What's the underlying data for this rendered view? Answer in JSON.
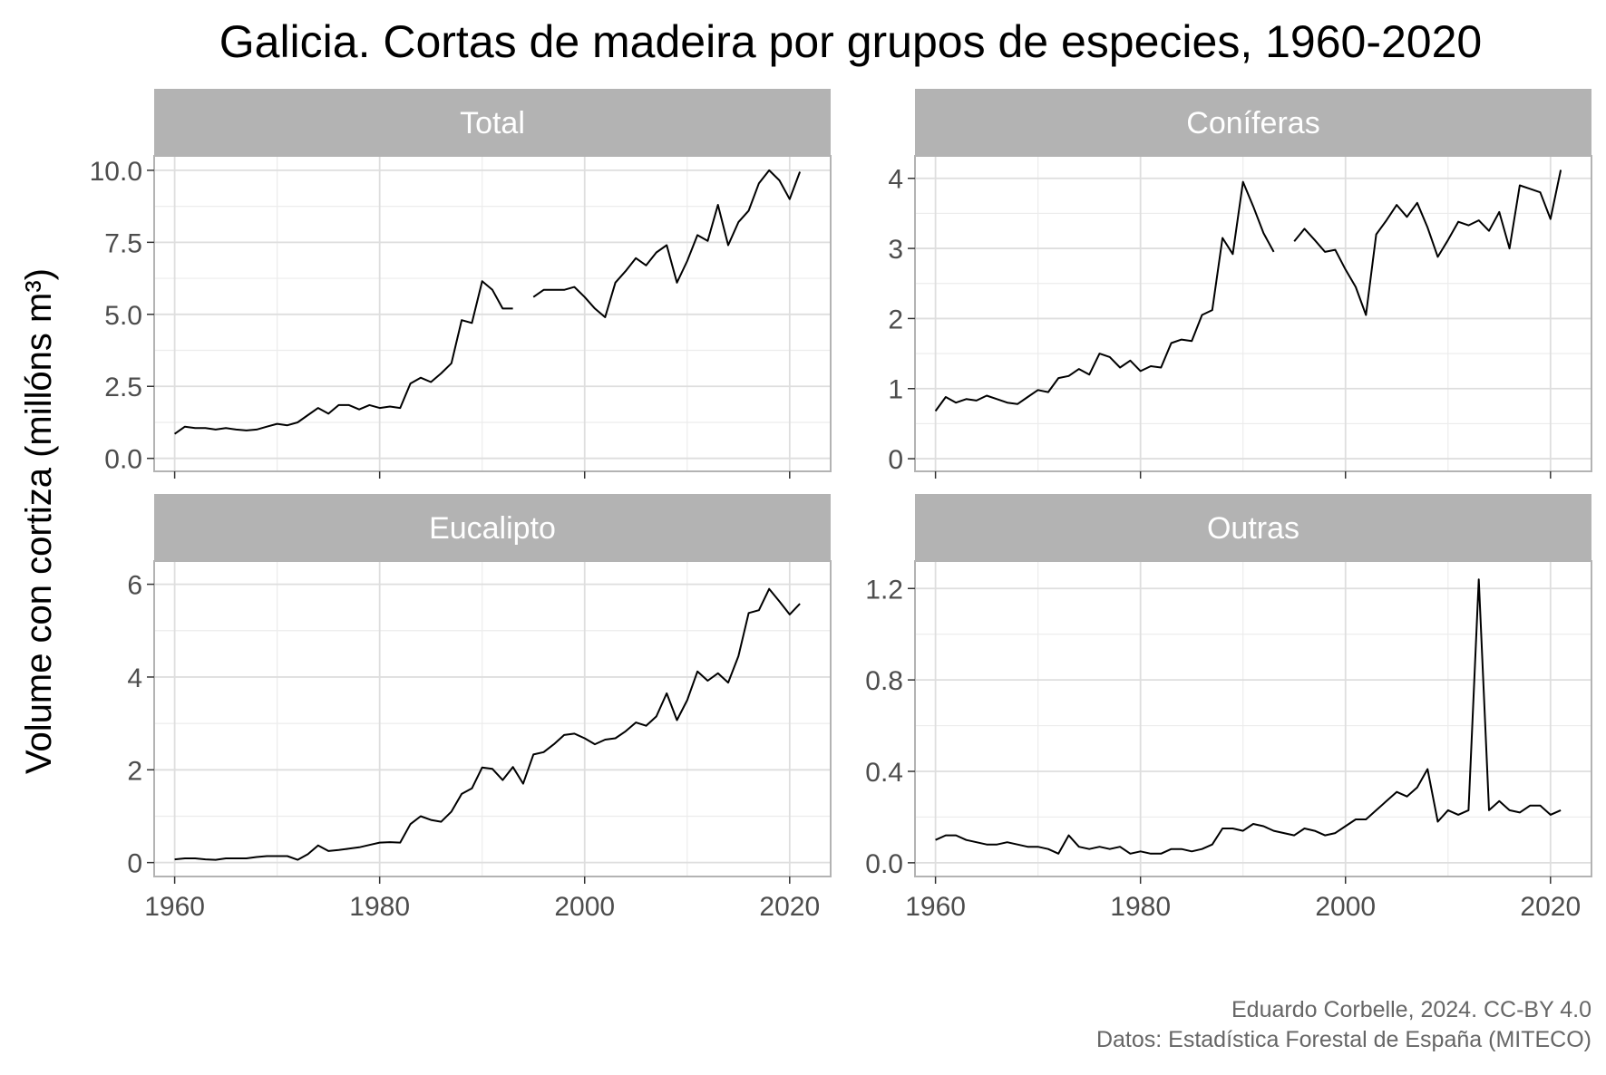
{
  "title": "Galicia. Cortas de madeira por grupos de especies, 1960-2020",
  "ylabel": "Volume con cortiza (millóns m³)",
  "caption": [
    "Eduardo Corbelle, 2024. CC-BY 4.0",
    "Datos: Estadística Forestal de España (MITECO)"
  ],
  "colors": {
    "strip": "#b3b3b3",
    "strip_text": "#ffffff",
    "grid": "#dedede",
    "line": "#000000",
    "axis_text": "#4d4d4d",
    "panel_border": "#b3b3b3"
  },
  "chart_data": [
    {
      "type": "line",
      "title": "Total",
      "xlim": [
        1958,
        2024
      ],
      "ylim": [
        -0.45,
        10.5
      ],
      "xticks": [
        1960,
        1980,
        2000,
        2020
      ],
      "xtick_labels": [
        "1960",
        "1980",
        "2000",
        "2020"
      ],
      "yticks": [
        0,
        2.5,
        5,
        7.5,
        10
      ],
      "ytick_labels": [
        "0.0",
        "2.5",
        "5.0",
        "7.5",
        "10.0"
      ],
      "grid": true,
      "x": [
        1960,
        1961,
        1962,
        1963,
        1964,
        1965,
        1966,
        1967,
        1968,
        1969,
        1970,
        1971,
        1972,
        1973,
        1974,
        1975,
        1976,
        1977,
        1978,
        1979,
        1980,
        1981,
        1982,
        1983,
        1984,
        1985,
        1986,
        1987,
        1988,
        1989,
        1990,
        1991,
        1992,
        1993,
        1994,
        1995,
        1996,
        1997,
        1998,
        1999,
        2000,
        2001,
        2002,
        2003,
        2004,
        2005,
        2006,
        2007,
        2008,
        2009,
        2010,
        2011,
        2012,
        2013,
        2014,
        2015,
        2016,
        2017,
        2018,
        2019,
        2020,
        2021
      ],
      "y": [
        0.85,
        1.1,
        1.05,
        1.05,
        1.0,
        1.05,
        1.0,
        0.97,
        1.0,
        1.1,
        1.2,
        1.15,
        1.25,
        1.5,
        1.75,
        1.55,
        1.85,
        1.85,
        1.7,
        1.85,
        1.75,
        1.8,
        1.75,
        2.6,
        2.8,
        2.65,
        2.95,
        3.3,
        4.8,
        4.7,
        6.15,
        5.85,
        5.2,
        5.2,
        null,
        5.6,
        5.85,
        5.85,
        5.85,
        5.95,
        5.6,
        5.2,
        4.9,
        6.1,
        6.5,
        6.95,
        6.7,
        7.15,
        7.4,
        6.1,
        6.85,
        7.75,
        7.55,
        8.8,
        7.4,
        8.2,
        8.6,
        9.55,
        10.0,
        9.65,
        9.0,
        9.95
      ]
    },
    {
      "type": "line",
      "title": "Coníferas",
      "xlim": [
        1958,
        2024
      ],
      "ylim": [
        -0.18,
        4.32
      ],
      "xticks": [
        1960,
        1980,
        2000,
        2020
      ],
      "xtick_labels": [
        "1960",
        "1980",
        "2000",
        "2020"
      ],
      "yticks": [
        0,
        1,
        2,
        3,
        4
      ],
      "ytick_labels": [
        "0",
        "1",
        "2",
        "3",
        "4"
      ],
      "grid": true,
      "x": [
        1960,
        1961,
        1962,
        1963,
        1964,
        1965,
        1966,
        1967,
        1968,
        1969,
        1970,
        1971,
        1972,
        1973,
        1974,
        1975,
        1976,
        1977,
        1978,
        1979,
        1980,
        1981,
        1982,
        1983,
        1984,
        1985,
        1986,
        1987,
        1988,
        1989,
        1990,
        1991,
        1992,
        1993,
        1994,
        1995,
        1996,
        1997,
        1998,
        1999,
        2000,
        2001,
        2002,
        2003,
        2004,
        2005,
        2006,
        2007,
        2008,
        2009,
        2010,
        2011,
        2012,
        2013,
        2014,
        2015,
        2016,
        2017,
        2018,
        2019,
        2020,
        2021
      ],
      "y": [
        0.68,
        0.88,
        0.8,
        0.85,
        0.83,
        0.9,
        0.85,
        0.8,
        0.78,
        0.88,
        0.98,
        0.95,
        1.15,
        1.18,
        1.28,
        1.2,
        1.5,
        1.45,
        1.3,
        1.4,
        1.25,
        1.32,
        1.3,
        1.65,
        1.7,
        1.68,
        2.05,
        2.12,
        3.15,
        2.92,
        3.95,
        3.6,
        3.22,
        2.95,
        null,
        3.1,
        3.28,
        3.12,
        2.95,
        2.98,
        2.7,
        2.45,
        2.05,
        3.2,
        3.4,
        3.62,
        3.45,
        3.65,
        3.3,
        2.88,
        3.12,
        3.38,
        3.33,
        3.4,
        3.25,
        3.52,
        3.0,
        3.9,
        3.85,
        3.8,
        3.42,
        4.12
      ]
    },
    {
      "type": "line",
      "title": "Eucalipto",
      "xlim": [
        1958,
        2024
      ],
      "ylim": [
        -0.3,
        6.5
      ],
      "xticks": [
        1960,
        1980,
        2000,
        2020
      ],
      "xtick_labels": [
        "1960",
        "1980",
        "2000",
        "2020"
      ],
      "yticks": [
        0,
        2,
        4,
        6
      ],
      "ytick_labels": [
        "0",
        "2",
        "4",
        "6"
      ],
      "grid": true,
      "x": [
        1960,
        1961,
        1962,
        1963,
        1964,
        1965,
        1966,
        1967,
        1968,
        1969,
        1970,
        1971,
        1972,
        1973,
        1974,
        1975,
        1976,
        1977,
        1978,
        1979,
        1980,
        1981,
        1982,
        1983,
        1984,
        1985,
        1986,
        1987,
        1988,
        1989,
        1990,
        1991,
        1992,
        1993,
        1994,
        1995,
        1996,
        1997,
        1998,
        1999,
        2000,
        2001,
        2002,
        2003,
        2004,
        2005,
        2006,
        2007,
        2008,
        2009,
        2010,
        2011,
        2012,
        2013,
        2014,
        2015,
        2016,
        2017,
        2018,
        2019,
        2020,
        2021
      ],
      "y": [
        0.07,
        0.09,
        0.09,
        0.07,
        0.06,
        0.09,
        0.09,
        0.09,
        0.12,
        0.14,
        0.14,
        0.14,
        0.06,
        0.18,
        0.37,
        0.25,
        0.27,
        0.3,
        0.33,
        0.38,
        0.43,
        0.44,
        0.43,
        0.83,
        1.0,
        0.92,
        0.88,
        1.1,
        1.48,
        1.6,
        2.05,
        2.02,
        1.78,
        2.06,
        1.7,
        2.33,
        2.38,
        2.55,
        2.75,
        2.78,
        2.68,
        2.55,
        2.65,
        2.68,
        2.83,
        3.02,
        2.95,
        3.15,
        3.65,
        3.07,
        3.5,
        4.12,
        3.92,
        4.08,
        3.88,
        4.45,
        5.38,
        5.44,
        5.9,
        5.63,
        5.35,
        5.58
      ]
    },
    {
      "type": "line",
      "title": "Outras",
      "xlim": [
        1958,
        2024
      ],
      "ylim": [
        -0.06,
        1.32
      ],
      "xticks": [
        1960,
        1980,
        2000,
        2020
      ],
      "xtick_labels": [
        "1960",
        "1980",
        "2000",
        "2020"
      ],
      "yticks": [
        0,
        0.4,
        0.8,
        1.2
      ],
      "ytick_labels": [
        "0.0",
        "0.4",
        "0.8",
        "1.2"
      ],
      "grid": true,
      "x": [
        1960,
        1961,
        1962,
        1963,
        1964,
        1965,
        1966,
        1967,
        1968,
        1969,
        1970,
        1971,
        1972,
        1973,
        1974,
        1975,
        1976,
        1977,
        1978,
        1979,
        1980,
        1981,
        1982,
        1983,
        1984,
        1985,
        1986,
        1987,
        1988,
        1989,
        1990,
        1991,
        1992,
        1993,
        1994,
        1995,
        1996,
        1997,
        1998,
        1999,
        2000,
        2001,
        2002,
        2003,
        2004,
        2005,
        2006,
        2007,
        2008,
        2009,
        2010,
        2011,
        2012,
        2013,
        2014,
        2015,
        2016,
        2017,
        2018,
        2019,
        2020,
        2021
      ],
      "y": [
        0.1,
        0.12,
        0.12,
        0.1,
        0.09,
        0.08,
        0.08,
        0.09,
        0.08,
        0.07,
        0.07,
        0.06,
        0.04,
        0.12,
        0.07,
        0.06,
        0.07,
        0.06,
        0.07,
        0.04,
        0.05,
        0.04,
        0.04,
        0.06,
        0.06,
        0.05,
        0.06,
        0.08,
        0.15,
        0.15,
        0.14,
        0.17,
        0.16,
        0.14,
        0.13,
        0.12,
        0.15,
        0.14,
        0.12,
        0.13,
        0.16,
        0.19,
        0.19,
        0.23,
        0.27,
        0.31,
        0.29,
        0.33,
        0.41,
        0.18,
        0.23,
        0.21,
        0.23,
        1.24,
        0.23,
        0.27,
        0.23,
        0.22,
        0.25,
        0.25,
        0.21,
        0.23
      ]
    }
  ]
}
